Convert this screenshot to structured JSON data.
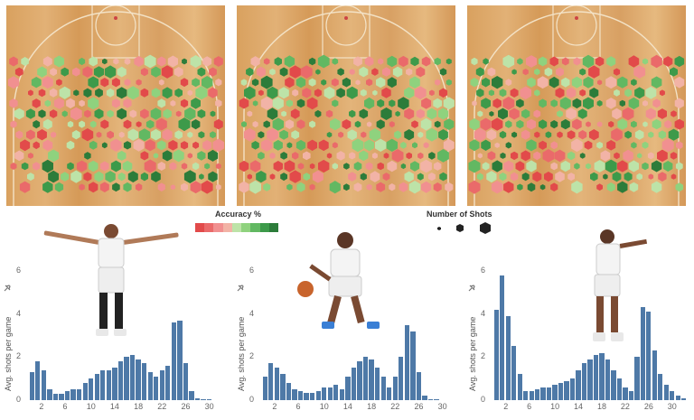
{
  "legend": {
    "accuracy_title": "Accuracy %",
    "accuracy_colors": [
      "#e24a4a",
      "#ea6a6a",
      "#f19090",
      "#f2b3a6",
      "#bde3a8",
      "#8fd27e",
      "#62b862",
      "#3d9a4a",
      "#2c7c3a"
    ],
    "shots_title": "Number of Shots"
  },
  "colors": {
    "bar": "#4e79a7",
    "court": "#deaa6c",
    "court_line": "#f3e2c6"
  },
  "chart_data": [
    {
      "type": "bar",
      "title": "",
      "ylabel": "Avg. shots per game",
      "ylim": [
        0,
        6.5
      ],
      "yticks": [
        0,
        2,
        4,
        6
      ],
      "xticks": [
        2,
        6,
        10,
        14,
        18,
        22,
        26,
        30
      ],
      "x": [
        0,
        1,
        2,
        3,
        4,
        5,
        6,
        7,
        8,
        9,
        10,
        11,
        12,
        13,
        14,
        15,
        16,
        17,
        18,
        19,
        20,
        21,
        22,
        23,
        24,
        25,
        26,
        27,
        28,
        29,
        30,
        31,
        32
      ],
      "values": [
        1.3,
        1.8,
        1.4,
        0.5,
        0.3,
        0.3,
        0.4,
        0.5,
        0.5,
        0.8,
        1.0,
        1.2,
        1.4,
        1.4,
        1.5,
        1.8,
        2.0,
        2.1,
        1.9,
        1.7,
        1.3,
        1.1,
        1.4,
        1.6,
        3.6,
        3.7,
        1.7,
        0.4,
        0.1,
        0.05,
        0.05,
        0,
        0
      ]
    },
    {
      "type": "bar",
      "title": "",
      "ylabel": "Avg. shots per game",
      "ylim": [
        0,
        6.5
      ],
      "yticks": [
        0,
        2,
        4,
        6
      ],
      "xticks": [
        2,
        6,
        10,
        14,
        18,
        22,
        26,
        30
      ],
      "x": [
        0,
        1,
        2,
        3,
        4,
        5,
        6,
        7,
        8,
        9,
        10,
        11,
        12,
        13,
        14,
        15,
        16,
        17,
        18,
        19,
        20,
        21,
        22,
        23,
        24,
        25,
        26,
        27,
        28,
        29,
        30,
        31,
        32
      ],
      "values": [
        1.1,
        1.7,
        1.5,
        1.2,
        0.8,
        0.5,
        0.4,
        0.35,
        0.35,
        0.4,
        0.6,
        0.6,
        0.7,
        0.5,
        1.1,
        1.5,
        1.8,
        2.0,
        1.9,
        1.5,
        1.1,
        0.6,
        1.1,
        2.0,
        3.5,
        3.2,
        1.3,
        0.2,
        0.05,
        0.05,
        0,
        0,
        0
      ]
    },
    {
      "type": "bar",
      "title": "",
      "ylabel": "Avg. shots per game",
      "ylim": [
        0,
        6.5
      ],
      "yticks": [
        0,
        2,
        4,
        6
      ],
      "xticks": [
        2,
        6,
        10,
        14,
        18,
        22,
        26,
        30
      ],
      "x": [
        0,
        1,
        2,
        3,
        4,
        5,
        6,
        7,
        8,
        9,
        10,
        11,
        12,
        13,
        14,
        15,
        16,
        17,
        18,
        19,
        20,
        21,
        22,
        23,
        24,
        25,
        26,
        27,
        28,
        29,
        30,
        31,
        32
      ],
      "values": [
        4.2,
        5.8,
        3.9,
        2.5,
        1.2,
        0.4,
        0.4,
        0.5,
        0.6,
        0.6,
        0.7,
        0.8,
        0.9,
        1.0,
        1.4,
        1.7,
        1.9,
        2.1,
        2.2,
        1.9,
        1.4,
        1.0,
        0.6,
        0.4,
        2.0,
        4.3,
        4.1,
        2.3,
        1.2,
        0.7,
        0.4,
        0.2,
        0.1
      ]
    }
  ]
}
